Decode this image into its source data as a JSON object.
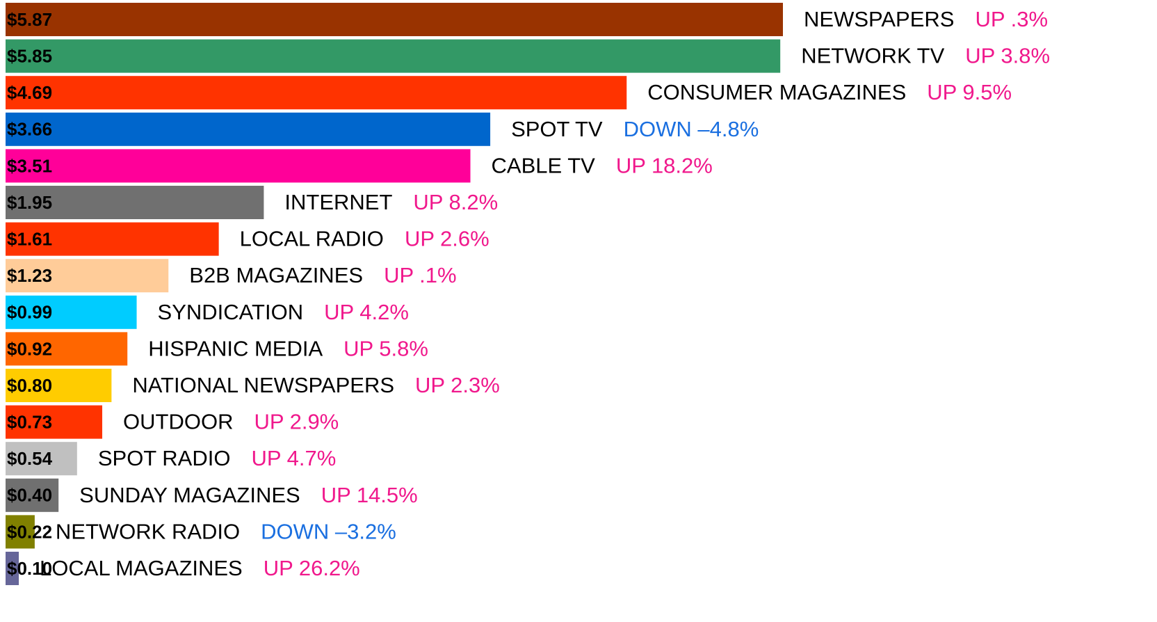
{
  "chart_data": {
    "type": "bar",
    "orientation": "horizontal",
    "categories": [
      "NEWSPAPERS",
      "NETWORK TV",
      "CONSUMER MAGAZINES",
      "SPOT TV",
      "CABLE TV",
      "INTERNET",
      "LOCAL RADIO",
      "B2B MAGAZINES",
      "SYNDICATION",
      "HISPANIC MEDIA",
      "NATIONAL NEWSPAPERS",
      "OUTDOOR",
      "SPOT RADIO",
      "SUNDAY MAGAZINES",
      "NETWORK RADIO",
      "LOCAL MAGAZINES"
    ],
    "values": [
      5.87,
      5.85,
      4.69,
      3.66,
      3.51,
      1.95,
      1.61,
      1.23,
      0.99,
      0.92,
      0.8,
      0.73,
      0.54,
      0.4,
      0.22,
      0.1
    ],
    "value_labels": [
      "$5.87",
      "$5.85",
      "$4.69",
      "$3.66",
      "$3.51",
      "$1.95",
      "$1.61",
      "$1.23",
      "$0.99",
      "$0.92",
      "$0.80",
      "$0.73",
      "$0.54",
      "$0.40",
      "$0.22",
      "$0.10"
    ],
    "colors": [
      "#993300",
      "#339966",
      "#ff3300",
      "#0066cc",
      "#ff0099",
      "#707070",
      "#ff3300",
      "#ffcc99",
      "#00ccff",
      "#ff6600",
      "#ffcc00",
      "#ff3300",
      "#c0c0c0",
      "#707070",
      "#808000",
      "#666699"
    ],
    "changes": [
      "UP .3%",
      "UP 3.8%",
      "UP 9.5%",
      "DOWN –4.8%",
      "UP 18.2%",
      "UP 8.2%",
      "UP 2.6%",
      "UP .1%",
      "UP 4.2%",
      "UP 5.8%",
      "UP 2.3%",
      "UP 2.9%",
      "UP 4.7%",
      "UP 14.5%",
      "DOWN –3.2%",
      "UP 26.2%"
    ],
    "change_colors": [
      "#f0188c",
      "#f0188c",
      "#f0188c",
      "#1a6fe0",
      "#f0188c",
      "#f0188c",
      "#f0188c",
      "#f0188c",
      "#f0188c",
      "#f0188c",
      "#f0188c",
      "#f0188c",
      "#f0188c",
      "#f0188c",
      "#1a6fe0",
      "#f0188c"
    ]
  }
}
